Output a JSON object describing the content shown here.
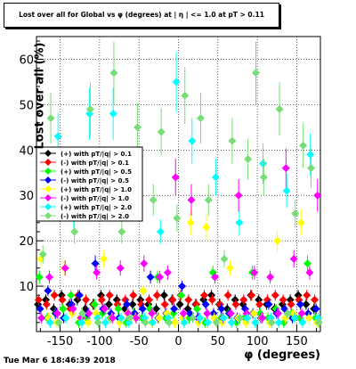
{
  "title": "Lost over all for Global vs φ (degrees) at | η | <= 1.0 at pT > 0.11",
  "footer": "Tue Mar  6 18:46:39 2018",
  "chart_data": {
    "type": "scatter",
    "xlabel": "φ (degrees)",
    "ylabel": "Lost over all (%)",
    "xlim": [
      -180,
      180
    ],
    "ylim": [
      0,
      65
    ],
    "xticks": [
      -150,
      -100,
      -50,
      0,
      50,
      100,
      150
    ],
    "yticks": [
      10,
      20,
      30,
      40,
      50,
      60
    ],
    "grid": true,
    "legend_position": "upper-left",
    "series": [
      {
        "name": "(+) with pT/|q| > 0.1",
        "color": "#000000",
        "x": [
          -175,
          -165,
          -155,
          -145,
          -135,
          -125,
          -115,
          -105,
          -95,
          -85,
          -75,
          -65,
          -55,
          -45,
          -35,
          -25,
          -15,
          -5,
          5,
          15,
          25,
          35,
          45,
          55,
          65,
          75,
          85,
          95,
          105,
          115,
          125,
          135,
          145,
          155,
          165,
          175
        ],
        "y": [
          6,
          7,
          5,
          8,
          6,
          7,
          5,
          6,
          8,
          6,
          7,
          5,
          6,
          7,
          6,
          5,
          8,
          7,
          6,
          5,
          6,
          7,
          8,
          6,
          5,
          7,
          6,
          8,
          7,
          6,
          5,
          6,
          7,
          8,
          6,
          5
        ]
      },
      {
        "name": "(-) with pT/|q| > 0.1",
        "color": "#ff0000",
        "x": [
          -175,
          -165,
          -155,
          -145,
          -135,
          -125,
          -115,
          -105,
          -95,
          -85,
          -75,
          -65,
          -55,
          -45,
          -35,
          -25,
          -15,
          -5,
          5,
          15,
          25,
          35,
          45,
          55,
          65,
          75,
          85,
          95,
          105,
          115,
          125,
          135,
          145,
          155,
          165,
          175
        ],
        "y": [
          7,
          6,
          8,
          7,
          5,
          8,
          7,
          6,
          7,
          8,
          6,
          7,
          8,
          6,
          7,
          8,
          6,
          7,
          8,
          7,
          6,
          8,
          7,
          6,
          8,
          6,
          7,
          8,
          6,
          7,
          8,
          7,
          6,
          7,
          8,
          7
        ]
      },
      {
        "name": "(+) with pT/|q| > 0.5",
        "color": "#00ff00",
        "x": [
          -175,
          -165,
          -155,
          -145,
          -135,
          -125,
          -115,
          -105,
          -95,
          -85,
          -75,
          -65,
          -55,
          -45,
          -35,
          -25,
          -15,
          -5,
          5,
          15,
          25,
          35,
          45,
          55,
          65,
          75,
          85,
          95,
          105,
          115,
          125,
          135,
          145,
          155,
          165,
          175
        ],
        "y": [
          12,
          3,
          4,
          5,
          8,
          2,
          3,
          6,
          4,
          3,
          5,
          2,
          4,
          3,
          5,
          12,
          3,
          4,
          8,
          3,
          5,
          2,
          13,
          3,
          4,
          2,
          3,
          13,
          4,
          3,
          5,
          2,
          4,
          3,
          15,
          3
        ]
      },
      {
        "name": "(-) with pT/|q| > 0.5",
        "color": "#0000ff",
        "x": [
          -175,
          -165,
          -155,
          -145,
          -135,
          -125,
          -115,
          -105,
          -95,
          -85,
          -75,
          -65,
          -55,
          -45,
          -35,
          -25,
          -15,
          -5,
          5,
          15,
          25,
          35,
          45,
          55,
          65,
          75,
          85,
          95,
          105,
          115,
          125,
          135,
          145,
          155,
          165,
          175
        ],
        "y": [
          5,
          9,
          4,
          3,
          6,
          8,
          4,
          15,
          5,
          4,
          3,
          6,
          4,
          5,
          12,
          3,
          4,
          5,
          10,
          4,
          3,
          6,
          4,
          5,
          4,
          3,
          5,
          4,
          3,
          6,
          4,
          5,
          3,
          6,
          4,
          5
        ]
      },
      {
        "name": "(+) with pT/|q| > 1.0",
        "color": "#ffff00",
        "x": [
          -175,
          -165,
          -155,
          -145,
          -135,
          -125,
          -115,
          -105,
          -95,
          -85,
          -75,
          -65,
          -55,
          -45,
          -35,
          -25,
          -15,
          -5,
          5,
          15,
          25,
          35,
          45,
          55,
          65,
          75,
          85,
          95,
          105,
          115,
          125,
          135,
          145,
          155,
          165,
          175
        ],
        "y": [
          16,
          3,
          2,
          14,
          4,
          3,
          2,
          4,
          16,
          3,
          2,
          4,
          3,
          9,
          2,
          3,
          4,
          2,
          3,
          24,
          2,
          23,
          3,
          2,
          14,
          3,
          2,
          4,
          3,
          2,
          20,
          3,
          4,
          24,
          3,
          2
        ]
      },
      {
        "name": "(-) with pT/|q| > 1.0",
        "color": "#ff00ff",
        "x": [
          -175,
          -165,
          -155,
          -145,
          -135,
          -125,
          -115,
          -105,
          -95,
          -85,
          -75,
          -65,
          -55,
          -45,
          -35,
          -25,
          -15,
          -5,
          5,
          15,
          25,
          35,
          45,
          55,
          65,
          75,
          85,
          95,
          105,
          115,
          125,
          135,
          145,
          155,
          165,
          175
        ],
        "y": [
          3,
          12,
          4,
          14,
          5,
          3,
          4,
          13,
          5,
          3,
          14,
          4,
          3,
          15,
          4,
          12,
          13,
          34,
          4,
          29,
          3,
          4,
          12,
          3,
          4,
          30,
          4,
          13,
          3,
          12,
          4,
          36,
          16,
          4,
          13,
          30
        ]
      },
      {
        "name": "(+) with pT/|q| > 2.0",
        "color": "#00ffff",
        "x": [
          -175,
          -165,
          -155,
          -145,
          -135,
          -125,
          -115,
          -105,
          -95,
          -85,
          -75,
          -65,
          -55,
          -45,
          -35,
          -25,
          -15,
          -5,
          5,
          15,
          25,
          35,
          45,
          55,
          65,
          75,
          85,
          95,
          105,
          115,
          125,
          135,
          145,
          155,
          165,
          175
        ],
        "y": [
          37,
          2,
          43,
          3,
          25,
          2,
          48,
          3,
          2,
          48,
          3,
          2,
          35,
          3,
          2,
          22,
          3,
          55,
          2,
          42,
          3,
          2,
          34,
          3,
          2,
          24,
          3,
          2,
          37,
          3,
          2,
          31,
          3,
          2,
          39,
          3
        ]
      },
      {
        "name": "(-) with pT/|q| > 2.0",
        "color": "#77dd77",
        "x": [
          -175,
          -165,
          -155,
          -145,
          -135,
          -125,
          -115,
          -105,
          -95,
          -85,
          -75,
          -65,
          -55,
          -45,
          -35,
          -25,
          -15,
          -5,
          5,
          15,
          25,
          35,
          45,
          55,
          65,
          75,
          85,
          95,
          105,
          115,
          125,
          135,
          145,
          155,
          165,
          175
        ],
        "y": [
          17,
          47,
          2,
          35,
          22,
          4,
          49,
          2,
          28,
          57,
          22,
          3,
          45,
          2,
          29,
          44,
          2,
          25,
          52,
          3,
          47,
          29,
          2,
          16,
          42,
          3,
          38,
          57,
          34,
          2,
          49,
          4,
          26,
          41,
          36,
          2
        ]
      }
    ]
  }
}
